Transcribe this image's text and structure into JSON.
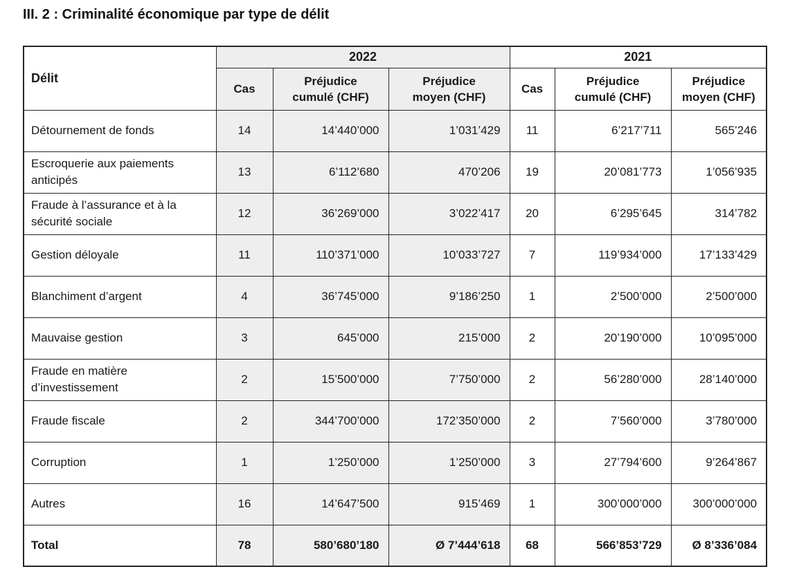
{
  "title": "III. 2 : Criminalité économique par type de délit",
  "colors": {
    "shaded_2022_group_bg": "#eeeeee",
    "table_border": "#262626",
    "text": "#1a1a1a",
    "page_background": "#ffffff"
  },
  "table": {
    "headers": {
      "delit": "Délit",
      "year_2022": "2022",
      "year_2021": "2021",
      "cas": "Cas",
      "prejudice_cumule": "Préjudice\ncumulé (CHF)",
      "prejudice_moyen": "Préjudice\nmoyen (CHF)"
    },
    "rows": [
      {
        "delit": "Détournement de fonds",
        "y2022": {
          "cas": "14",
          "cumule": "14’440’000",
          "moyen": "1’031’429"
        },
        "y2021": {
          "cas": "11",
          "cumule": "6’217’711",
          "moyen": "565’246"
        }
      },
      {
        "delit": "Escroquerie aux paiements\nanticipés",
        "y2022": {
          "cas": "13",
          "cumule": "6’112’680",
          "moyen": "470’206"
        },
        "y2021": {
          "cas": "19",
          "cumule": "20’081’773",
          "moyen": "1’056’935"
        }
      },
      {
        "delit": "Fraude à l’assurance et à la\nsécurité sociale",
        "y2022": {
          "cas": "12",
          "cumule": "36’269’000",
          "moyen": "3’022’417"
        },
        "y2021": {
          "cas": "20",
          "cumule": "6’295’645",
          "moyen": "314’782"
        }
      },
      {
        "delit": "Gestion déloyale",
        "y2022": {
          "cas": "11",
          "cumule": "110’371’000",
          "moyen": "10’033’727"
        },
        "y2021": {
          "cas": "7",
          "cumule": "119’934’000",
          "moyen": "17’133’429"
        }
      },
      {
        "delit": "Blanchiment d’argent",
        "y2022": {
          "cas": "4",
          "cumule": "36’745’000",
          "moyen": "9’186’250"
        },
        "y2021": {
          "cas": "1",
          "cumule": "2’500’000",
          "moyen": "2’500’000"
        }
      },
      {
        "delit": "Mauvaise gestion",
        "y2022": {
          "cas": "3",
          "cumule": "645’000",
          "moyen": "215’000"
        },
        "y2021": {
          "cas": "2",
          "cumule": "20’190’000",
          "moyen": "10’095’000"
        }
      },
      {
        "delit": "Fraude en matière\nd’investissement",
        "y2022": {
          "cas": "2",
          "cumule": "15’500’000",
          "moyen": "7’750’000"
        },
        "y2021": {
          "cas": "2",
          "cumule": "56’280’000",
          "moyen": "28’140’000"
        }
      },
      {
        "delit": "Fraude fiscale",
        "y2022": {
          "cas": "2",
          "cumule": "344’700’000",
          "moyen": "172’350’000"
        },
        "y2021": {
          "cas": "2",
          "cumule": "7’560’000",
          "moyen": "3’780’000"
        }
      },
      {
        "delit": "Corruption",
        "y2022": {
          "cas": "1",
          "cumule": "1’250’000",
          "moyen": "1’250’000"
        },
        "y2021": {
          "cas": "3",
          "cumule": "27’794’600",
          "moyen": "9’264’867"
        }
      },
      {
        "delit": "Autres",
        "y2022": {
          "cas": "16",
          "cumule": "14’647’500",
          "moyen": "915’469"
        },
        "y2021": {
          "cas": "1",
          "cumule": "300’000’000",
          "moyen": "300’000’000"
        }
      }
    ],
    "total": {
      "delit": "Total",
      "y2022": {
        "cas": "78",
        "cumule": "580’680’180",
        "moyen": "Ø 7’444’618"
      },
      "y2021": {
        "cas": "68",
        "cumule": "566’853’729",
        "moyen": "Ø 8’336’084"
      }
    }
  }
}
